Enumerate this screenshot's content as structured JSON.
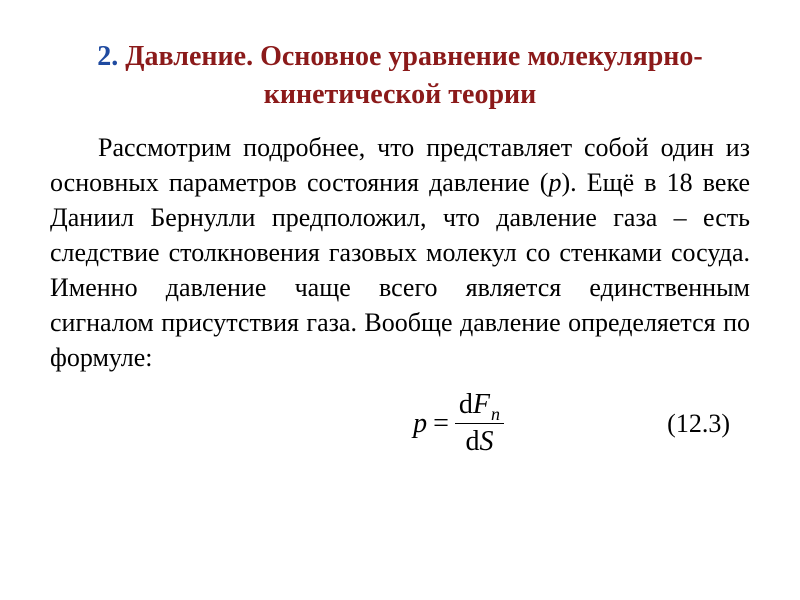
{
  "title": {
    "number": "2.",
    "text": "Давление. Основное уравнение молекулярно-кинетической теории",
    "number_color": "#1f4aa0",
    "text_color": "#8b1a1a",
    "fontsize": 28
  },
  "body": {
    "prefix": "Рассмотрим подробнее, что представляет собой один из основных параметров состояния давление (",
    "pvar": "p",
    "suffix": "). Ещё в 18 веке Даниил Бернулли предположил, что давление газа – есть следствие столкновения газовых молекул со стенками сосуда. Именно давление чаще всего является единственным сигналом присутствия газа. Вообще давление определяется по формуле:",
    "fontsize": 26,
    "color": "#000000"
  },
  "formula": {
    "lhs": "p",
    "eq": "=",
    "d": "d",
    "num_var": "F",
    "num_sub": "n",
    "den_var": "S",
    "eq_number": "(12.3)",
    "fontsize": 28,
    "sub_fontsize": 18,
    "color": "#000000"
  }
}
